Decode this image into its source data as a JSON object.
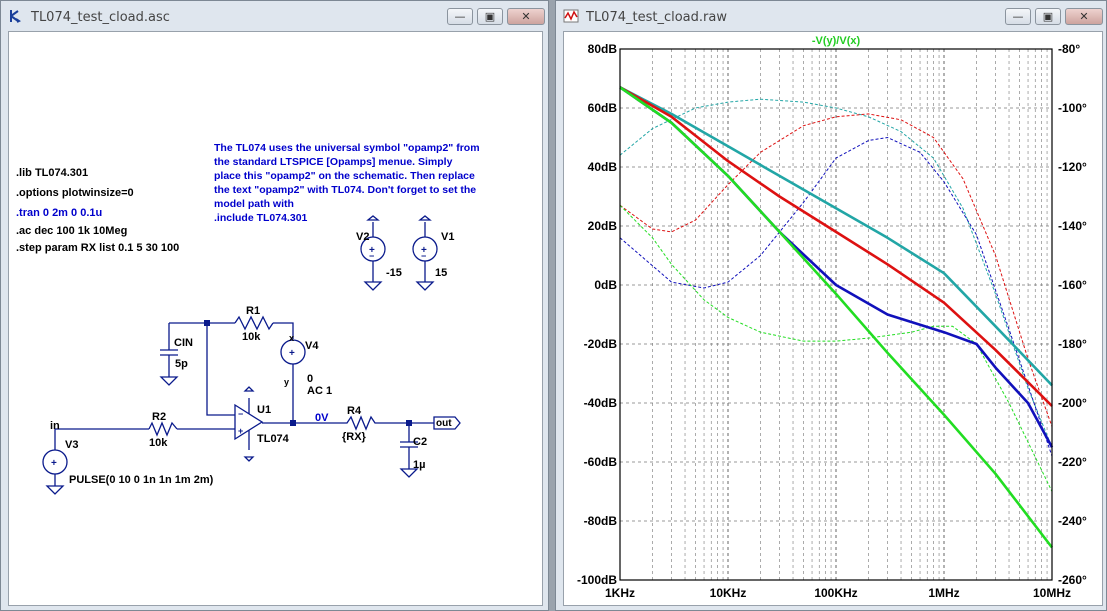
{
  "schematic_window": {
    "title": "TL074_test_cload.asc",
    "buttons": {
      "minimize": "—",
      "restore": "▣",
      "close": "✕"
    }
  },
  "plot_window": {
    "title": "TL074_test_cload.raw",
    "buttons": {
      "minimize": "—",
      "restore": "▣",
      "close": "✕"
    }
  },
  "schematic": {
    "directives": [
      ".lib TL074.301",
      ".options plotwinsize=0",
      ".tran 0 2m 0 0.1u",
      ".ac dec 100 1k 10Meg",
      ".step param RX list 0.1 5 30 100"
    ],
    "note": "The TL074 uses the universal symbol \"opamp2\" from\nthe standard LTSPICE [Opamps] menue. Simply\nplace this \"opamp2\" on the schematic. Then replace\nthe text \"opamp2\" with TL074. Don't forget to set the\nmodel path with\n.include TL074.301",
    "components": {
      "v2_name": "V2",
      "v2_value": "-15",
      "v1_name": "V1",
      "v1_value": "15",
      "r1_name": "R1",
      "r1_value": "10k",
      "cin_name": "CIN",
      "cin_value": "5p",
      "v4_name": "V4",
      "v4_value1": "0",
      "v4_value2": "AC 1",
      "v4_plus": "x",
      "v4_minus": "y",
      "u1_name": "U1",
      "u1_value": "TL074",
      "r2_name": "R2",
      "r2_value": "10k",
      "r4_name": "R4",
      "r4_value": "{RX}",
      "c2_name": "C2",
      "c2_value": "1µ",
      "v3_name": "V3",
      "v3_value": "PULSE(0 10 0 1n 1n 1m 2m)"
    },
    "net_labels": {
      "in": "in",
      "out": "out",
      "node_0v": "0V"
    }
  },
  "plot": {
    "trace_expression": "-V(y)/V(x)",
    "colors": {
      "teal": "#22a6a6",
      "red": "#dd1111",
      "blue": "#1111bb",
      "green": "#22dd22",
      "label": "#22cc22"
    },
    "chart_data": {
      "type": "line",
      "title": "-V(y)/V(x)",
      "x_scale": "log",
      "x_range_hz": [
        1000,
        10000000
      ],
      "x_ticks": [
        "1KHz",
        "10KHz",
        "100KHz",
        "1MHz",
        "10MHz"
      ],
      "y_left_range_db": [
        -100,
        80
      ],
      "y_left_ticks": [
        "80dB",
        "60dB",
        "40dB",
        "20dB",
        "0dB",
        "-20dB",
        "-40dB",
        "-60dB",
        "-80dB",
        "-100dB"
      ],
      "y_right_range_deg": [
        -260,
        -80
      ],
      "y_right_ticks": [
        "-80°",
        "-100°",
        "-120°",
        "-140°",
        "-160°",
        "-180°",
        "-200°",
        "-220°",
        "-240°",
        "-260°"
      ],
      "grid": true,
      "series": [
        {
          "color": "#22a6a6",
          "magnitude_db": [
            [
              1000,
              67
            ],
            [
              3000,
              58
            ],
            [
              10000,
              47
            ],
            [
              30000,
              37
            ],
            [
              100000,
              26
            ],
            [
              300000,
              16
            ],
            [
              1000000,
              4
            ],
            [
              3000000,
              -14
            ],
            [
              10000000,
              -34
            ]
          ],
          "phase_deg": [
            [
              1000,
              -116
            ],
            [
              2000,
              -107
            ],
            [
              5000,
              -100
            ],
            [
              10000,
              -98
            ],
            [
              20000,
              -97
            ],
            [
              50000,
              -98
            ],
            [
              100000,
              -100
            ],
            [
              200000,
              -103
            ],
            [
              400000,
              -108
            ],
            [
              800000,
              -117
            ],
            [
              1500000,
              -134
            ],
            [
              3000000,
              -163
            ],
            [
              6000000,
              -195
            ],
            [
              10000000,
              -215
            ]
          ]
        },
        {
          "color": "#dd1111",
          "magnitude_db": [
            [
              1000,
              67
            ],
            [
              3000,
              57
            ],
            [
              10000,
              42
            ],
            [
              30000,
              30
            ],
            [
              100000,
              18
            ],
            [
              300000,
              7
            ],
            [
              1000000,
              -6
            ],
            [
              3000000,
              -22
            ],
            [
              10000000,
              -41
            ]
          ],
          "phase_deg": [
            [
              1000,
              -133
            ],
            [
              2000,
              -141
            ],
            [
              3000,
              -142
            ],
            [
              5000,
              -138
            ],
            [
              10000,
              -126
            ],
            [
              20000,
              -115
            ],
            [
              50000,
              -106
            ],
            [
              100000,
              -103
            ],
            [
              200000,
              -102
            ],
            [
              400000,
              -104
            ],
            [
              800000,
              -110
            ],
            [
              1500000,
              -124
            ],
            [
              3000000,
              -150
            ],
            [
              6000000,
              -185
            ],
            [
              10000000,
              -208
            ]
          ]
        },
        {
          "color": "#1111bb",
          "magnitude_db": [
            [
              1000,
              67
            ],
            [
              3000,
              55
            ],
            [
              10000,
              37
            ],
            [
              30000,
              18
            ],
            [
              100000,
              0
            ],
            [
              300000,
              -10
            ],
            [
              1000000,
              -16
            ],
            [
              2000000,
              -20
            ],
            [
              3000000,
              -28
            ],
            [
              6000000,
              -40
            ],
            [
              10000000,
              -55
            ]
          ],
          "phase_deg": [
            [
              1000,
              -144
            ],
            [
              3000,
              -159
            ],
            [
              6000,
              -161
            ],
            [
              10000,
              -159
            ],
            [
              20000,
              -150
            ],
            [
              50000,
              -132
            ],
            [
              100000,
              -117
            ],
            [
              200000,
              -111
            ],
            [
              300000,
              -110
            ],
            [
              600000,
              -115
            ],
            [
              1000000,
              -125
            ],
            [
              2000000,
              -143
            ],
            [
              4000000,
              -175
            ],
            [
              10000000,
              -218
            ]
          ]
        },
        {
          "color": "#22dd22",
          "magnitude_db": [
            [
              1000,
              67
            ],
            [
              3000,
              55
            ],
            [
              10000,
              37
            ],
            [
              30000,
              18
            ],
            [
              100000,
              -3
            ],
            [
              300000,
              -23
            ],
            [
              1000000,
              -44
            ],
            [
              3000000,
              -64
            ],
            [
              10000000,
              -89
            ]
          ],
          "phase_deg": [
            [
              1000,
              -133
            ],
            [
              2000,
              -144
            ],
            [
              3000,
              -153
            ],
            [
              6000,
              -165
            ],
            [
              10000,
              -171
            ],
            [
              20000,
              -176
            ],
            [
              50000,
              -179
            ],
            [
              100000,
              -179
            ],
            [
              200000,
              -178
            ],
            [
              500000,
              -176
            ],
            [
              800000,
              -174
            ],
            [
              1200000,
              -174
            ],
            [
              2000000,
              -180
            ],
            [
              4000000,
              -200
            ],
            [
              10000000,
              -230
            ]
          ]
        }
      ]
    }
  }
}
